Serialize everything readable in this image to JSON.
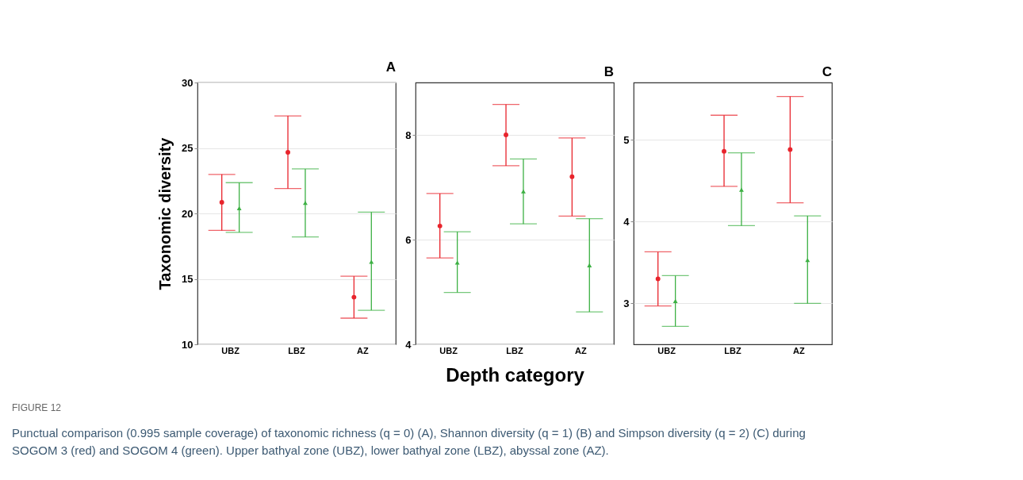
{
  "chart_data": [
    {
      "type": "scatter",
      "title": "A",
      "ylabel": "Taxonomic diversity",
      "categories": [
        "UBZ",
        "LBZ",
        "AZ"
      ],
      "ylim": [
        10,
        30
      ],
      "yticks": [
        10,
        15,
        20,
        25,
        30
      ],
      "grid": "y",
      "series": [
        {
          "color": "#e8242c",
          "marker": "circle",
          "values": [
            20.85,
            24.67,
            13.6
          ],
          "errors": [
            [
              18.7,
              22.98
            ],
            [
              21.9,
              27.45
            ],
            [
              12.0,
              15.2
            ]
          ]
        },
        {
          "color": "#3cb043",
          "marker": "triangle",
          "values": [
            20.4,
            20.8,
            16.3
          ],
          "errors": [
            [
              18.55,
              22.35
            ],
            [
              18.2,
              23.4
            ],
            [
              12.6,
              20.1
            ]
          ]
        }
      ],
      "annotations": [
        "FIGURE 12",
        "Punctual comparison (0.995 sample coverage) of taxonomic richness (q = 0) (A), Shannon diversity (q = 1) (B) and Simpson diversity (q = 2) (C) during SOGOM 3 (red) and SOGOM 4 (green). Upper bathyal zone (UBZ), lower bathyal zone (LBZ), abyssal zone (AZ)."
      ]
    },
    {
      "type": "scatter",
      "title": "B",
      "xlabel": "Depth category",
      "categories": [
        "UBZ",
        "LBZ",
        "AZ"
      ],
      "ylim": [
        4,
        9
      ],
      "yticks": [
        4,
        6,
        8
      ],
      "grid": "y",
      "series": [
        {
          "color": "#e8242c",
          "marker": "circle",
          "values": [
            6.26,
            8.0,
            7.2
          ],
          "errors": [
            [
              5.65,
              6.88
            ],
            [
              7.41,
              8.58
            ],
            [
              6.45,
              7.94
            ]
          ]
        },
        {
          "color": "#3cb043",
          "marker": "triangle",
          "values": [
            5.56,
            6.92,
            5.51
          ],
          "errors": [
            [
              4.99,
              6.15
            ],
            [
              6.3,
              7.54
            ],
            [
              4.62,
              6.4
            ]
          ]
        }
      ]
    },
    {
      "type": "scatter",
      "title": "C",
      "categories": [
        "UBZ",
        "LBZ",
        "AZ"
      ],
      "ylim": [
        2.5,
        5.7
      ],
      "yticks": [
        3,
        4,
        5
      ],
      "grid": "y",
      "series": [
        {
          "color": "#e8242c",
          "marker": "circle",
          "values": [
            3.3,
            4.86,
            4.88
          ],
          "errors": [
            [
              2.97,
              3.63
            ],
            [
              4.43,
              5.3
            ],
            [
              4.23,
              5.53
            ]
          ]
        },
        {
          "color": "#3cb043",
          "marker": "triangle",
          "values": [
            3.03,
            4.39,
            3.53
          ],
          "errors": [
            [
              2.72,
              3.34
            ],
            [
              3.95,
              4.84
            ],
            [
              3.0,
              4.07
            ]
          ]
        }
      ]
    }
  ]
}
